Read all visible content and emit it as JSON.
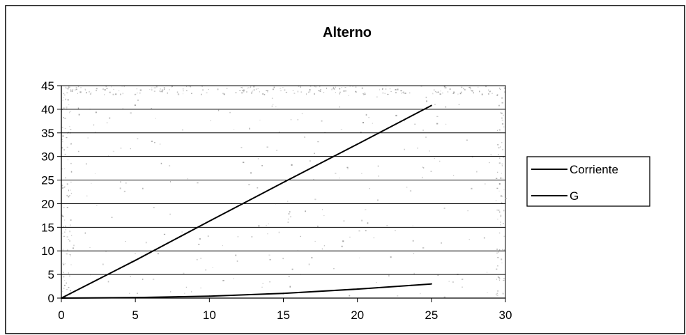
{
  "chart_data": {
    "type": "line",
    "title": "Alterno",
    "xlabel": "",
    "ylabel": "",
    "xlim": [
      0,
      30
    ],
    "ylim": [
      0,
      45
    ],
    "x_ticks": [
      "0",
      "5",
      "10",
      "15",
      "20",
      "25",
      "30"
    ],
    "y_ticks": [
      "0",
      "5",
      "10",
      "15",
      "20",
      "25",
      "30",
      "35",
      "40",
      "45"
    ],
    "grid": "horizontal",
    "legend_position": "right",
    "series": [
      {
        "name": "Corriente",
        "color": "#000000",
        "x": [
          0,
          5,
          10,
          15,
          20,
          25
        ],
        "y": [
          0,
          8,
          16.3,
          24.5,
          32.6,
          40.8
        ]
      },
      {
        "name": "G",
        "color": "#000000",
        "x": [
          0,
          5,
          10,
          15,
          20,
          25
        ],
        "y": [
          0,
          0.1,
          0.4,
          1.0,
          1.9,
          3.0
        ]
      }
    ]
  }
}
